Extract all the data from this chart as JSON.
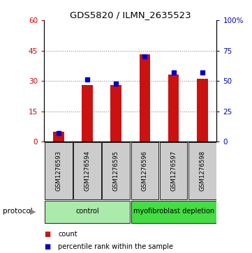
{
  "title": "GDS5820 / ILMN_2635523",
  "samples": [
    "GSM1276593",
    "GSM1276594",
    "GSM1276595",
    "GSM1276596",
    "GSM1276597",
    "GSM1276598"
  ],
  "counts": [
    5,
    28,
    28,
    43,
    33,
    31
  ],
  "percentiles": [
    7,
    51,
    48,
    70,
    57,
    57
  ],
  "groups": [
    {
      "label": "control",
      "indices": [
        0,
        1,
        2
      ],
      "color": "#aaeaaa"
    },
    {
      "label": "myofibroblast depletion",
      "indices": [
        3,
        4,
        5
      ],
      "color": "#44dd44"
    }
  ],
  "left_ylim": [
    0,
    60
  ],
  "right_ylim": [
    0,
    100
  ],
  "left_yticks": [
    0,
    15,
    30,
    45,
    60
  ],
  "right_yticks": [
    0,
    25,
    50,
    75,
    100
  ],
  "right_yticklabels": [
    "0",
    "25",
    "50",
    "75",
    "100%"
  ],
  "left_color": "#cc0000",
  "right_color": "#0000cc",
  "bar_color": "#cc1111",
  "dot_color": "#0000cc",
  "grid_color": "#888888",
  "bg_color": "#ffffff",
  "sample_bg": "#cccccc",
  "protocol_label": "protocol",
  "legend_count": "count",
  "legend_pct": "percentile rank within the sample"
}
